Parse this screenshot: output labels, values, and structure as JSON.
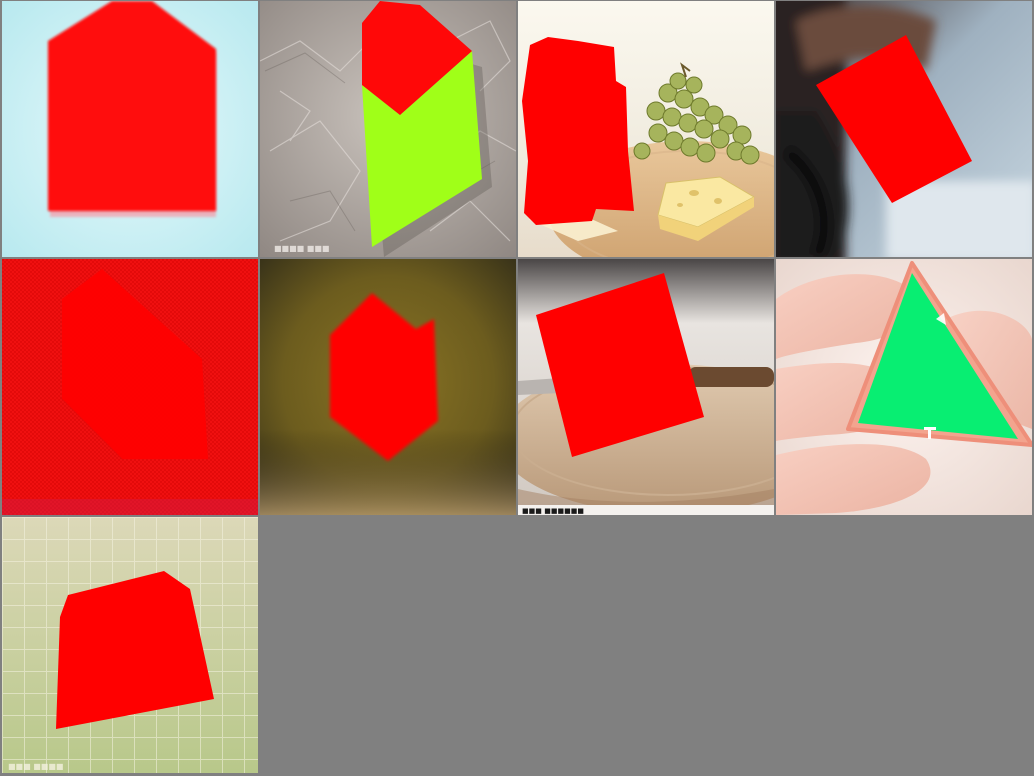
{
  "grid": {
    "columns": 4,
    "rows": 3,
    "background": "#808080",
    "filled_tiles": 9
  },
  "tiles": [
    {
      "subject": "red-house-pentagon",
      "background": "#c9eef2",
      "shape_color": "#ff0000"
    },
    {
      "subject": "red-and-lime-hexagon-on-crumpled-paper",
      "background": "#b3aaa5",
      "shape_colors": [
        "#ff0000",
        "#9eff12"
      ]
    },
    {
      "subject": "red-block-with-grapes-and-cheese",
      "background": "#f3efe3",
      "shape_color": "#ff0000"
    },
    {
      "subject": "red-rectangle-on-dark-chair",
      "background": "#8fa5b7",
      "shape_color": "#ff0000"
    },
    {
      "subject": "red-square-on-red-fabric",
      "background": "#f20d0d",
      "shape_color": "#ff0000"
    },
    {
      "subject": "red-hexagon-on-olive-gradient",
      "background": "#6e5a1e",
      "shape_color": "#ff0000"
    },
    {
      "subject": "red-square-on-cutting-board",
      "background": "#d9c4aa",
      "shape_color": "#ff0000"
    },
    {
      "subject": "green-triangle-held-in-fingers",
      "background": "#f1d5cc",
      "shape_color": "#07ee72"
    },
    {
      "subject": "red-pentagon-on-green-mat",
      "background": "#c9d69b",
      "shape_color": "#ff0000"
    }
  ]
}
